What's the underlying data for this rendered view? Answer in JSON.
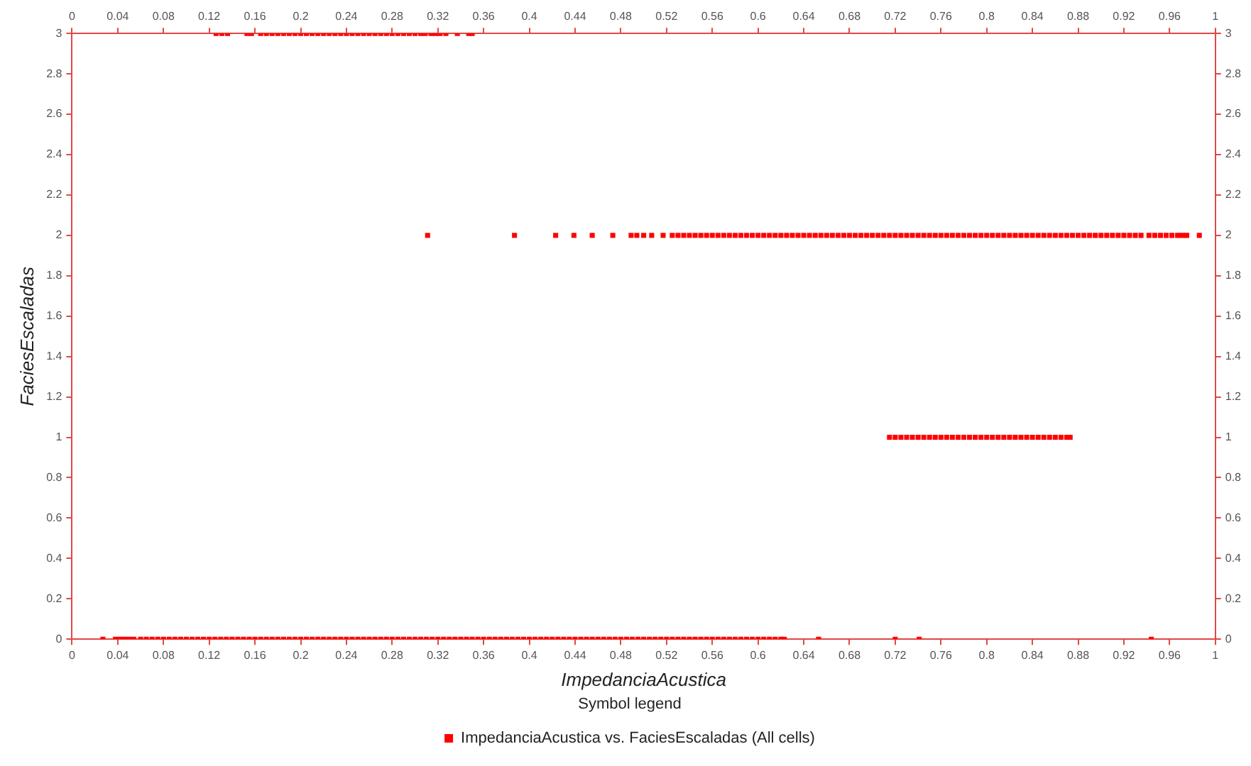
{
  "chart_data": {
    "type": "scatter",
    "xlabel": "ImpedanciaAcustica",
    "ylabel": "FaciesEscaladas",
    "legend_title": "Symbol legend",
    "legend": "bottom",
    "marker": "square",
    "grid": false,
    "xlim": [
      0,
      1
    ],
    "xticks": [
      0,
      0.04,
      0.08,
      0.12,
      0.16,
      0.2,
      0.24,
      0.28,
      0.32,
      0.36,
      0.4,
      0.44,
      0.48,
      0.52,
      0.56,
      0.6,
      0.64,
      0.68,
      0.72,
      0.76,
      0.8,
      0.84,
      0.88,
      0.92,
      0.96,
      1
    ],
    "x2lim": [
      0,
      1
    ],
    "x2ticks": [
      0,
      0.04,
      0.08,
      0.12,
      0.16,
      0.2,
      0.24,
      0.28,
      0.32,
      0.36,
      0.4,
      0.44,
      0.48,
      0.52,
      0.56,
      0.6,
      0.64,
      0.68,
      0.72,
      0.76,
      0.8,
      0.84,
      0.88,
      0.92,
      0.96,
      1
    ],
    "ylim": [
      0,
      3
    ],
    "yticks": [
      0,
      0.2,
      0.4,
      0.6,
      0.8,
      1,
      1.2,
      1.4,
      1.6,
      1.8,
      2,
      2.2,
      2.4,
      2.6,
      2.8,
      3
    ],
    "y2lim": [
      0,
      3
    ],
    "y2ticks": [
      0,
      0.2,
      0.4,
      0.6,
      0.8,
      1,
      1.2,
      1.4,
      1.6,
      1.8,
      2,
      2.2,
      2.4,
      2.6,
      2.8,
      3
    ],
    "series": [
      {
        "name": "ImpedanciaAcustica vs. FaciesEscaladas (All cells)",
        "color": "#ff0000",
        "x": [
          0.027,
          0.038,
          0.042,
          0.046,
          0.05,
          0.054,
          0.06,
          0.065,
          0.07,
          0.075,
          0.08,
          0.085,
          0.09,
          0.095,
          0.1,
          0.105,
          0.11,
          0.115,
          0.12,
          0.125,
          0.13,
          0.135,
          0.14,
          0.145,
          0.15,
          0.155,
          0.16,
          0.165,
          0.17,
          0.175,
          0.18,
          0.185,
          0.19,
          0.195,
          0.2,
          0.205,
          0.21,
          0.215,
          0.22,
          0.225,
          0.23,
          0.235,
          0.24,
          0.245,
          0.25,
          0.255,
          0.26,
          0.265,
          0.27,
          0.275,
          0.28,
          0.285,
          0.29,
          0.295,
          0.3,
          0.305,
          0.31,
          0.315,
          0.32,
          0.325,
          0.33,
          0.335,
          0.34,
          0.345,
          0.35,
          0.355,
          0.36,
          0.365,
          0.37,
          0.375,
          0.38,
          0.385,
          0.39,
          0.395,
          0.4,
          0.405,
          0.41,
          0.415,
          0.42,
          0.425,
          0.43,
          0.435,
          0.44,
          0.445,
          0.45,
          0.455,
          0.46,
          0.465,
          0.47,
          0.475,
          0.48,
          0.485,
          0.49,
          0.495,
          0.5,
          0.505,
          0.51,
          0.515,
          0.52,
          0.525,
          0.53,
          0.535,
          0.54,
          0.545,
          0.55,
          0.555,
          0.56,
          0.565,
          0.57,
          0.575,
          0.58,
          0.585,
          0.59,
          0.595,
          0.6,
          0.605,
          0.61,
          0.615,
          0.62,
          0.623,
          0.653,
          0.72,
          0.741,
          0.944
        ],
        "values": [
          0,
          0,
          0,
          0,
          0,
          0,
          0,
          0,
          0,
          0,
          0,
          0,
          0,
          0,
          0,
          0,
          0,
          0,
          0,
          0,
          0,
          0,
          0,
          0,
          0,
          0,
          0,
          0,
          0,
          0,
          0,
          0,
          0,
          0,
          0,
          0,
          0,
          0,
          0,
          0,
          0,
          0,
          0,
          0,
          0,
          0,
          0,
          0,
          0,
          0,
          0,
          0,
          0,
          0,
          0,
          0,
          0,
          0,
          0,
          0,
          0,
          0,
          0,
          0,
          0,
          0,
          0,
          0,
          0,
          0,
          0,
          0,
          0,
          0,
          0,
          0,
          0,
          0,
          0,
          0,
          0,
          0,
          0,
          0,
          0,
          0,
          0,
          0,
          0,
          0,
          0,
          0,
          0,
          0,
          0,
          0,
          0,
          0,
          0,
          0,
          0,
          0,
          0,
          0,
          0,
          0,
          0,
          0,
          0,
          0,
          0,
          0,
          0,
          0,
          0,
          0,
          0,
          0,
          0,
          0,
          0,
          0,
          0,
          0
        ]
      },
      {
        "color": "#ff0000",
        "x": [
          0.715,
          0.72,
          0.725,
          0.73,
          0.735,
          0.74,
          0.745,
          0.75,
          0.755,
          0.76,
          0.765,
          0.77,
          0.775,
          0.78,
          0.785,
          0.79,
          0.795,
          0.8,
          0.805,
          0.81,
          0.815,
          0.82,
          0.825,
          0.83,
          0.835,
          0.84,
          0.845,
          0.85,
          0.855,
          0.86,
          0.865,
          0.87,
          0.873
        ],
        "values": [
          1,
          1,
          1,
          1,
          1,
          1,
          1,
          1,
          1,
          1,
          1,
          1,
          1,
          1,
          1,
          1,
          1,
          1,
          1,
          1,
          1,
          1,
          1,
          1,
          1,
          1,
          1,
          1,
          1,
          1,
          1,
          1,
          1
        ]
      },
      {
        "color": "#ff0000",
        "x": [
          0.311,
          0.387,
          0.423,
          0.439,
          0.455,
          0.473,
          0.489,
          0.494,
          0.5,
          0.507,
          0.517,
          0.525,
          0.53,
          0.535,
          0.54,
          0.545,
          0.55,
          0.555,
          0.56,
          0.565,
          0.57,
          0.575,
          0.58,
          0.585,
          0.59,
          0.595,
          0.6,
          0.605,
          0.61,
          0.615,
          0.62,
          0.625,
          0.63,
          0.635,
          0.64,
          0.645,
          0.65,
          0.655,
          0.66,
          0.665,
          0.67,
          0.675,
          0.68,
          0.685,
          0.69,
          0.695,
          0.7,
          0.705,
          0.71,
          0.715,
          0.72,
          0.725,
          0.73,
          0.735,
          0.74,
          0.745,
          0.75,
          0.755,
          0.76,
          0.765,
          0.77,
          0.775,
          0.78,
          0.785,
          0.79,
          0.795,
          0.8,
          0.805,
          0.81,
          0.815,
          0.82,
          0.825,
          0.83,
          0.835,
          0.84,
          0.845,
          0.85,
          0.855,
          0.86,
          0.865,
          0.87,
          0.875,
          0.88,
          0.885,
          0.89,
          0.895,
          0.9,
          0.905,
          0.91,
          0.915,
          0.92,
          0.925,
          0.93,
          0.935,
          0.942,
          0.947,
          0.952,
          0.957,
          0.962,
          0.967,
          0.971,
          0.975,
          0.986
        ],
        "values": [
          2,
          2,
          2,
          2,
          2,
          2,
          2,
          2,
          2,
          2,
          2,
          2,
          2,
          2,
          2,
          2,
          2,
          2,
          2,
          2,
          2,
          2,
          2,
          2,
          2,
          2,
          2,
          2,
          2,
          2,
          2,
          2,
          2,
          2,
          2,
          2,
          2,
          2,
          2,
          2,
          2,
          2,
          2,
          2,
          2,
          2,
          2,
          2,
          2,
          2,
          2,
          2,
          2,
          2,
          2,
          2,
          2,
          2,
          2,
          2,
          2,
          2,
          2,
          2,
          2,
          2,
          2,
          2,
          2,
          2,
          2,
          2,
          2,
          2,
          2,
          2,
          2,
          2,
          2,
          2,
          2,
          2,
          2,
          2,
          2,
          2,
          2,
          2,
          2,
          2,
          2,
          2,
          2,
          2,
          2,
          2,
          2,
          2,
          2,
          2,
          2,
          2,
          2
        ]
      },
      {
        "color": "#ff0000",
        "x": [
          0.126,
          0.131,
          0.136,
          0.153,
          0.157,
          0.165,
          0.17,
          0.175,
          0.18,
          0.185,
          0.19,
          0.195,
          0.2,
          0.205,
          0.21,
          0.215,
          0.22,
          0.225,
          0.23,
          0.235,
          0.24,
          0.245,
          0.25,
          0.255,
          0.26,
          0.265,
          0.27,
          0.275,
          0.28,
          0.285,
          0.29,
          0.295,
          0.3,
          0.305,
          0.309,
          0.314,
          0.318,
          0.322,
          0.327,
          0.337,
          0.347,
          0.35
        ],
        "values": [
          3,
          3,
          3,
          3,
          3,
          3,
          3,
          3,
          3,
          3,
          3,
          3,
          3,
          3,
          3,
          3,
          3,
          3,
          3,
          3,
          3,
          3,
          3,
          3,
          3,
          3,
          3,
          3,
          3,
          3,
          3,
          3,
          3,
          3,
          3,
          3,
          3,
          3,
          3,
          3,
          3,
          3
        ]
      }
    ]
  }
}
